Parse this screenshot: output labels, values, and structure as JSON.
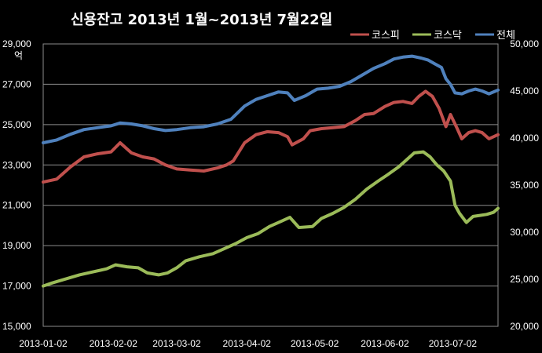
{
  "chart_data": {
    "type": "line",
    "title": "신용잔고 2013년 1월~2013년 7월22일",
    "left_axis": {
      "unit": "억",
      "ylim": [
        15000,
        29000
      ],
      "ticks": [
        "29,000",
        "27,000",
        "25,000",
        "23,000",
        "21,000",
        "19,000",
        "17,000",
        "15,000"
      ],
      "tick_values": [
        29000,
        27000,
        25000,
        23000,
        21000,
        19000,
        17000,
        15000
      ]
    },
    "right_axis": {
      "ylim": [
        20000,
        50000
      ],
      "ticks": [
        "50,000",
        "45,000",
        "40,000",
        "35,000",
        "30,000",
        "25,000",
        "20,000"
      ],
      "tick_values": [
        50000,
        45000,
        40000,
        35000,
        30000,
        25000,
        20000
      ]
    },
    "x_axis": {
      "start": "2013-01-02",
      "end": "2013-07-22",
      "ticks": [
        "2013-01-02",
        "2013-02-02",
        "2013-03-02",
        "2013-04-02",
        "2013-05-02",
        "2013-06-02",
        "2013-07-02"
      ]
    },
    "grid": true,
    "legend_position": "top-right",
    "series": [
      {
        "name": "코스피",
        "axis": "left",
        "color": "#c0504d",
        "points": [
          [
            "2013-01-02",
            22150
          ],
          [
            "2013-01-08",
            22300
          ],
          [
            "2013-01-14",
            22900
          ],
          [
            "2013-01-20",
            23400
          ],
          [
            "2013-01-26",
            23550
          ],
          [
            "2013-02-01",
            23650
          ],
          [
            "2013-02-05",
            24100
          ],
          [
            "2013-02-10",
            23600
          ],
          [
            "2013-02-15",
            23400
          ],
          [
            "2013-02-20",
            23300
          ],
          [
            "2013-02-25",
            23000
          ],
          [
            "2013-03-02",
            22800
          ],
          [
            "2013-03-08",
            22750
          ],
          [
            "2013-03-14",
            22700
          ],
          [
            "2013-03-20",
            22850
          ],
          [
            "2013-03-24",
            23000
          ],
          [
            "2013-03-27",
            23200
          ],
          [
            "2013-04-01",
            24100
          ],
          [
            "2013-04-06",
            24500
          ],
          [
            "2013-04-11",
            24650
          ],
          [
            "2013-04-16",
            24600
          ],
          [
            "2013-04-20",
            24400
          ],
          [
            "2013-04-22",
            24000
          ],
          [
            "2013-04-27",
            24300
          ],
          [
            "2013-04-30",
            24700
          ],
          [
            "2013-05-05",
            24800
          ],
          [
            "2013-05-10",
            24850
          ],
          [
            "2013-05-15",
            24900
          ],
          [
            "2013-05-20",
            25200
          ],
          [
            "2013-05-24",
            25500
          ],
          [
            "2013-05-28",
            25550
          ],
          [
            "2013-06-02",
            25900
          ],
          [
            "2013-06-06",
            26100
          ],
          [
            "2013-06-10",
            26150
          ],
          [
            "2013-06-14",
            26050
          ],
          [
            "2013-06-17",
            26400
          ],
          [
            "2013-06-20",
            26650
          ],
          [
            "2013-06-23",
            26400
          ],
          [
            "2013-06-26",
            25800
          ],
          [
            "2013-06-29",
            24900
          ],
          [
            "2013-07-01",
            25500
          ],
          [
            "2013-07-04",
            24800
          ],
          [
            "2013-07-06",
            24300
          ],
          [
            "2013-07-09",
            24600
          ],
          [
            "2013-07-12",
            24700
          ],
          [
            "2013-07-15",
            24600
          ],
          [
            "2013-07-18",
            24300
          ],
          [
            "2013-07-22",
            24500
          ]
        ]
      },
      {
        "name": "코스닥",
        "axis": "left",
        "color": "#9bbb59",
        "points": [
          [
            "2013-01-02",
            17000
          ],
          [
            "2013-01-06",
            17150
          ],
          [
            "2013-01-12",
            17350
          ],
          [
            "2013-01-18",
            17550
          ],
          [
            "2013-01-24",
            17700
          ],
          [
            "2013-01-30",
            17850
          ],
          [
            "2013-02-03",
            18050
          ],
          [
            "2013-02-08",
            17950
          ],
          [
            "2013-02-13",
            17900
          ],
          [
            "2013-02-17",
            17650
          ],
          [
            "2013-02-22",
            17550
          ],
          [
            "2013-02-26",
            17650
          ],
          [
            "2013-03-02",
            17900
          ],
          [
            "2013-03-06",
            18250
          ],
          [
            "2013-03-12",
            18450
          ],
          [
            "2013-03-18",
            18600
          ],
          [
            "2013-03-22",
            18800
          ],
          [
            "2013-03-28",
            19100
          ],
          [
            "2013-04-02",
            19400
          ],
          [
            "2013-04-07",
            19600
          ],
          [
            "2013-04-12",
            19950
          ],
          [
            "2013-04-17",
            20200
          ],
          [
            "2013-04-21",
            20400
          ],
          [
            "2013-04-25",
            19900
          ],
          [
            "2013-05-01",
            19950
          ],
          [
            "2013-05-05",
            20350
          ],
          [
            "2013-05-10",
            20600
          ],
          [
            "2013-05-15",
            20900
          ],
          [
            "2013-05-20",
            21300
          ],
          [
            "2013-05-25",
            21800
          ],
          [
            "2013-05-30",
            22200
          ],
          [
            "2013-06-03",
            22500
          ],
          [
            "2013-06-08",
            22900
          ],
          [
            "2013-06-12",
            23300
          ],
          [
            "2013-06-15",
            23600
          ],
          [
            "2013-06-19",
            23650
          ],
          [
            "2013-06-22",
            23400
          ],
          [
            "2013-06-25",
            23000
          ],
          [
            "2013-06-28",
            22700
          ],
          [
            "2013-07-01",
            22200
          ],
          [
            "2013-07-03",
            21000
          ],
          [
            "2013-07-05",
            20600
          ],
          [
            "2013-07-08",
            20150
          ],
          [
            "2013-07-11",
            20450
          ],
          [
            "2013-07-14",
            20500
          ],
          [
            "2013-07-17",
            20550
          ],
          [
            "2013-07-20",
            20650
          ],
          [
            "2013-07-22",
            20850
          ]
        ]
      },
      {
        "name": "전체",
        "axis": "right",
        "color": "#4f81bd",
        "points": [
          [
            "2013-01-02",
            39500
          ],
          [
            "2013-01-08",
            39800
          ],
          [
            "2013-01-14",
            40400
          ],
          [
            "2013-01-20",
            40900
          ],
          [
            "2013-01-26",
            41100
          ],
          [
            "2013-02-01",
            41300
          ],
          [
            "2013-02-05",
            41600
          ],
          [
            "2013-02-10",
            41500
          ],
          [
            "2013-02-15",
            41300
          ],
          [
            "2013-02-20",
            41000
          ],
          [
            "2013-02-25",
            40800
          ],
          [
            "2013-03-02",
            40900
          ],
          [
            "2013-03-08",
            41100
          ],
          [
            "2013-03-14",
            41200
          ],
          [
            "2013-03-20",
            41500
          ],
          [
            "2013-03-26",
            42000
          ],
          [
            "2013-04-01",
            43400
          ],
          [
            "2013-04-06",
            44100
          ],
          [
            "2013-04-11",
            44500
          ],
          [
            "2013-04-16",
            44900
          ],
          [
            "2013-04-20",
            44800
          ],
          [
            "2013-04-23",
            44000
          ],
          [
            "2013-04-28",
            44500
          ],
          [
            "2013-05-03",
            45200
          ],
          [
            "2013-05-08",
            45300
          ],
          [
            "2013-05-13",
            45500
          ],
          [
            "2013-05-18",
            46000
          ],
          [
            "2013-05-23",
            46700
          ],
          [
            "2013-05-28",
            47400
          ],
          [
            "2013-06-02",
            47900
          ],
          [
            "2013-06-06",
            48400
          ],
          [
            "2013-06-10",
            48600
          ],
          [
            "2013-06-14",
            48700
          ],
          [
            "2013-06-18",
            48500
          ],
          [
            "2013-06-21",
            48300
          ],
          [
            "2013-06-24",
            47900
          ],
          [
            "2013-06-27",
            47500
          ],
          [
            "2013-06-29",
            46300
          ],
          [
            "2013-07-01",
            45700
          ],
          [
            "2013-07-03",
            44800
          ],
          [
            "2013-07-06",
            44700
          ],
          [
            "2013-07-09",
            45000
          ],
          [
            "2013-07-12",
            45200
          ],
          [
            "2013-07-15",
            45000
          ],
          [
            "2013-07-18",
            44700
          ],
          [
            "2013-07-22",
            45100
          ]
        ]
      }
    ]
  }
}
